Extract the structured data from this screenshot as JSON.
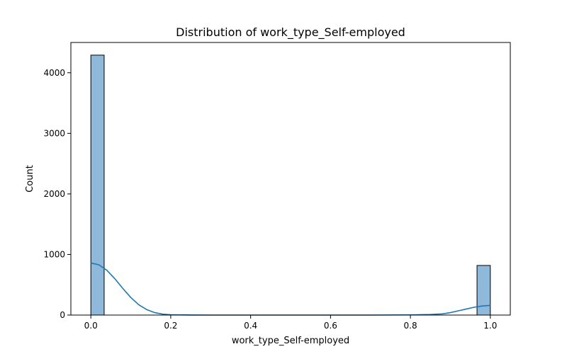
{
  "chart_data": {
    "type": "bar",
    "title": "Distribution of work_type_Self-employed",
    "xlabel": "work_type_Self-employed",
    "ylabel": "Count",
    "xlim": [
      -0.05,
      1.05
    ],
    "ylim": [
      0,
      4500
    ],
    "xticks": [
      0.0,
      0.2,
      0.4,
      0.6,
      0.8,
      1.0
    ],
    "xtick_labels": [
      "0.0",
      "0.2",
      "0.4",
      "0.6",
      "0.8",
      "1.0"
    ],
    "yticks": [
      0,
      1000,
      2000,
      3000,
      4000
    ],
    "ytick_labels": [
      "0",
      "1000",
      "2000",
      "3000",
      "4000"
    ],
    "bins": [
      {
        "x0": 0.0,
        "x1": 0.0333,
        "count": 4291
      },
      {
        "x0": 0.9667,
        "x1": 1.0,
        "count": 819
      }
    ],
    "kde": {
      "x": [
        0.0,
        0.02,
        0.04,
        0.06,
        0.08,
        0.1,
        0.12,
        0.14,
        0.16,
        0.18,
        0.2,
        0.25,
        0.3,
        0.4,
        0.5,
        0.6,
        0.7,
        0.8,
        0.85,
        0.88,
        0.9,
        0.92,
        0.94,
        0.96,
        0.98,
        1.0
      ],
      "y": [
        860,
        830,
        740,
        600,
        440,
        290,
        170,
        90,
        40,
        15,
        5,
        1,
        0,
        0,
        0,
        0,
        0,
        3,
        10,
        20,
        40,
        70,
        100,
        130,
        150,
        160
      ]
    },
    "grid": false,
    "legend": "none",
    "colors": {
      "bar_fill": "#8fb9da",
      "bar_edge": "#000000",
      "kde_line": "#1f77b4"
    }
  }
}
